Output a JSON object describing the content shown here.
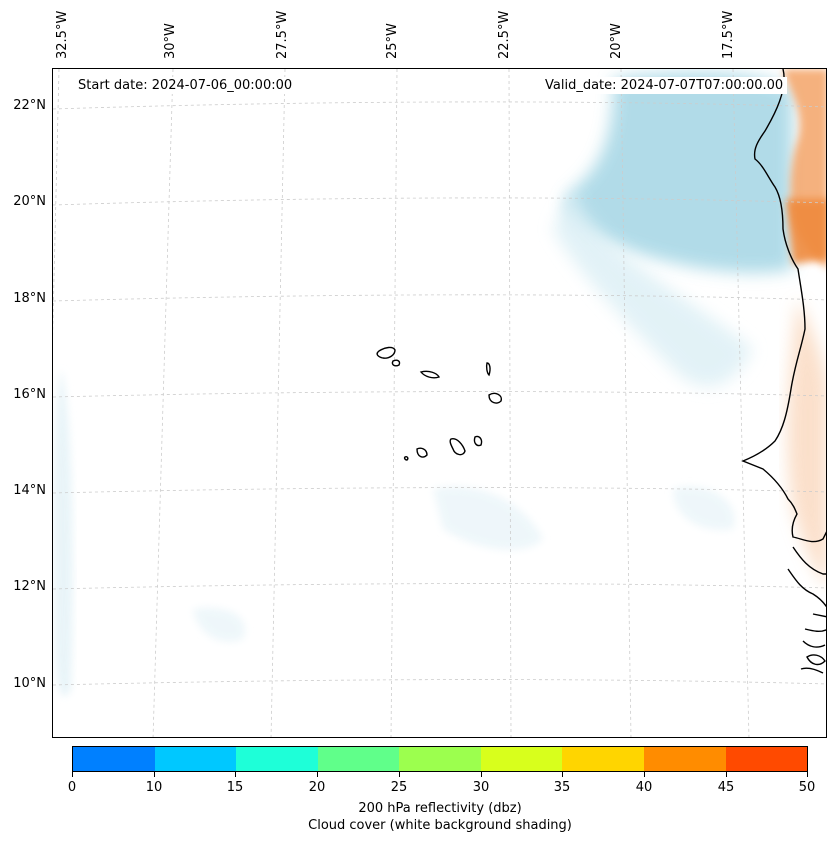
{
  "map": {
    "start_label": "Start date: 2024-07-06_00:00:00",
    "valid_label": "Valid_date: 2024-07-07T07:00:00.00",
    "lon_labels": [
      "32.5°W",
      "30°W",
      "27.5°W",
      "25°W",
      "22.5°W",
      "20°W",
      "17.5°W"
    ],
    "lat_labels": [
      "22°N",
      "20°N",
      "18°N",
      "16°N",
      "14°N",
      "12°N",
      "10°N"
    ],
    "gridlines": true
  },
  "colorbar": {
    "ticks": [
      "0",
      "10",
      "15",
      "20",
      "25",
      "30",
      "35",
      "40",
      "45",
      "50"
    ],
    "colors": [
      "#0080ff",
      "#00c8ff",
      "#1effd8",
      "#60ff8a",
      "#9cff4e",
      "#d8ff1c",
      "#ffd500",
      "#ff8c00",
      "#ff4a00"
    ],
    "label_line1": "200 hPa reflectivity (dbz)",
    "label_line2": "Cloud cover (white background shading)"
  }
}
